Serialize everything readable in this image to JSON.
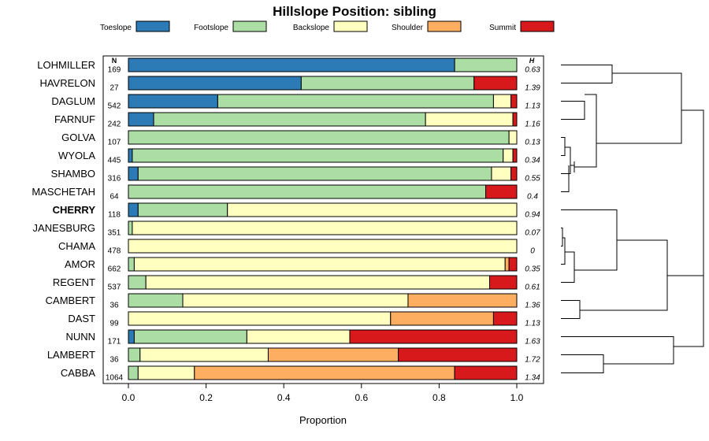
{
  "chart_data": {
    "type": "bar",
    "stacked": true,
    "orientation": "horizontal",
    "title": "Hillslope Position: sibling",
    "xlabel": "Proportion",
    "xlim": [
      0,
      1
    ],
    "xticks": [
      "0.0",
      "0.2",
      "0.4",
      "0.6",
      "0.8",
      "1.0"
    ],
    "xtick_values": [
      0,
      0.2,
      0.4,
      0.6,
      0.8,
      1.0
    ],
    "n_header": "N",
    "h_header": "H",
    "highlight": "CHERRY",
    "legend_position": "top",
    "legend": [
      {
        "name": "Toeslope",
        "color": "#2c7bb6"
      },
      {
        "name": "Footslope",
        "color": "#abdda4"
      },
      {
        "name": "Backslope",
        "color": "#ffffbf"
      },
      {
        "name": "Shoulder",
        "color": "#fdae61"
      },
      {
        "name": "Summit",
        "color": "#d7191c"
      }
    ],
    "rows": [
      {
        "name": "LOHMILLER",
        "n": "169",
        "h": "0.63",
        "values": [
          0.84,
          0.16,
          0,
          0,
          0
        ]
      },
      {
        "name": "HAVRELON",
        "n": "27",
        "h": "1.39",
        "values": [
          0.445,
          0.445,
          0,
          0,
          0.11
        ]
      },
      {
        "name": "DAGLUM",
        "n": "542",
        "h": "1.13",
        "values": [
          0.23,
          0.71,
          0.045,
          0,
          0.015
        ]
      },
      {
        "name": "FARNUF",
        "n": "242",
        "h": "1.16",
        "values": [
          0.065,
          0.7,
          0.225,
          0,
          0.01
        ]
      },
      {
        "name": "GOLVA",
        "n": "107",
        "h": "0.13",
        "values": [
          0,
          0.98,
          0.02,
          0,
          0
        ]
      },
      {
        "name": "WYOLA",
        "n": "445",
        "h": "0.34",
        "values": [
          0.01,
          0.955,
          0.025,
          0,
          0.01
        ]
      },
      {
        "name": "SHAMBO",
        "n": "316",
        "h": "0.55",
        "values": [
          0.025,
          0.91,
          0.05,
          0,
          0.015
        ]
      },
      {
        "name": "MASCHETAH",
        "n": "64",
        "h": "0.4",
        "values": [
          0,
          0.92,
          0,
          0,
          0.08
        ]
      },
      {
        "name": "CHERRY",
        "n": "118",
        "h": "0.94",
        "values": [
          0.025,
          0.23,
          0.745,
          0,
          0
        ]
      },
      {
        "name": "JANESBURG",
        "n": "351",
        "h": "0.07",
        "values": [
          0,
          0.01,
          0.99,
          0,
          0
        ]
      },
      {
        "name": "CHAMA",
        "n": "478",
        "h": "0",
        "values": [
          0,
          0,
          1.0,
          0,
          0
        ]
      },
      {
        "name": "AMOR",
        "n": "662",
        "h": "0.35",
        "values": [
          0,
          0.015,
          0.955,
          0.01,
          0.02
        ]
      },
      {
        "name": "REGENT",
        "n": "537",
        "h": "0.61",
        "values": [
          0,
          0.045,
          0.885,
          0,
          0.07
        ]
      },
      {
        "name": "CAMBERT",
        "n": "36",
        "h": "1.36",
        "values": [
          0,
          0.14,
          0.58,
          0.28,
          0
        ]
      },
      {
        "name": "DAST",
        "n": "99",
        "h": "1.13",
        "values": [
          0,
          0,
          0.675,
          0.265,
          0.06
        ]
      },
      {
        "name": "NUNN",
        "n": "171",
        "h": "1.63",
        "values": [
          0.015,
          0.29,
          0.265,
          0,
          0.43
        ]
      },
      {
        "name": "LAMBERT",
        "n": "36",
        "h": "1.72",
        "values": [
          0,
          0.03,
          0.33,
          0.335,
          0.305
        ]
      },
      {
        "name": "CABBA",
        "n": "1064",
        "h": "1.34",
        "values": [
          0,
          0.025,
          0.145,
          0.67,
          0.16
        ]
      }
    ]
  }
}
